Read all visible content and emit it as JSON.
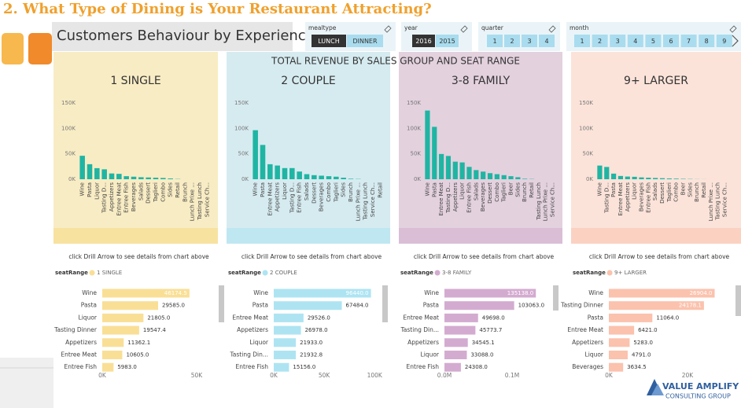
{
  "header": {
    "title": "2. What Type of Dining is Your Restaurant Attracting?",
    "subtitle": "Customers Behaviour by Experience",
    "section_title": "TOTAL REVENUE BY SALES GROUP AND SEAT RANGE",
    "logo_line1": "VALUE AMPLIFY",
    "logo_line2": "CONSULTING GROUP"
  },
  "slicers": [
    {
      "label": "mealtype",
      "options": [
        "LUNCH",
        "DINNER"
      ],
      "selected": 0
    },
    {
      "label": "year",
      "options": [
        2016,
        2015
      ],
      "selected": 0
    },
    {
      "label": "quarter",
      "options": [
        1,
        2,
        3,
        4
      ]
    },
    {
      "label": "month",
      "options": [
        1,
        2,
        3,
        4,
        5,
        6,
        7,
        8,
        9
      ]
    }
  ],
  "chart_data": [
    {
      "type": "bar",
      "title": "1 SINGLE",
      "color": "#1fb5a3",
      "categories": [
        "Wine",
        "Pasta",
        "Liquor",
        "Tasting D...",
        "Appetizers",
        "Entree Meat",
        "Entree Fish",
        "Beverages",
        "Salads",
        "Dessert",
        "Taglieri",
        "Combo",
        "Sides",
        "Retail",
        "Brunch",
        "Lunch Prixe ...",
        "Tasting Lunch",
        "Service Ch..."
      ],
      "values": [
        46174.5,
        29585,
        21805,
        19547.4,
        11362.1,
        10605,
        5983,
        5000,
        4000,
        3500,
        3000,
        2500,
        1500,
        500,
        0,
        0,
        0,
        0
      ],
      "ylim": [
        0,
        150000
      ],
      "yticks": [
        {
          "value": 0,
          "label": "0K"
        },
        {
          "value": 50000,
          "label": "50K"
        },
        {
          "value": 100000,
          "label": "100K"
        },
        {
          "value": 150000,
          "label": "150K"
        }
      ]
    },
    {
      "type": "bar",
      "title": "2 COUPLE",
      "color": "#1fb5a3",
      "categories": [
        "Wine",
        "Pasta",
        "Entree Meat",
        "Appetizers",
        "Liquor",
        "Tasting D...",
        "Entree Fish",
        "Salads",
        "Dessert",
        "Beverages",
        "Combo",
        "Taglieri",
        "Sides",
        "Brunch",
        "Lunch Prixe ...",
        "Tasting Lunch",
        "Service Ch...",
        "Retail"
      ],
      "values": [
        96440,
        67484,
        29526,
        26978,
        21933,
        21932.8,
        15156,
        10000,
        8000,
        7000,
        6000,
        5000,
        3000,
        1000,
        500,
        0,
        0,
        0
      ],
      "ylim": [
        0,
        150000
      ],
      "yticks": [
        {
          "value": 0,
          "label": "0K"
        },
        {
          "value": 50000,
          "label": "50K"
        },
        {
          "value": 100000,
          "label": "100K"
        },
        {
          "value": 150000,
          "label": "150K"
        }
      ]
    },
    {
      "type": "bar",
      "title": "3-8 FAMILY",
      "color": "#1fb5a3",
      "categories": [
        "Wine",
        "Pasta",
        "Entree Meat",
        "Tasting D...",
        "Appetizers",
        "Liquor",
        "Entree Fish",
        "Salads",
        "Beverages",
        "Dessert",
        "Combo",
        "Taglieri",
        "Beer",
        "Sides",
        "Brunch",
        "Retail",
        "Tasting Lunch",
        "Lunch Prixe ...",
        "Service Ch..."
      ],
      "values": [
        135138,
        103063,
        49698,
        45773.7,
        34545.1,
        33088,
        24308,
        18000,
        15000,
        12000,
        10000,
        8000,
        6000,
        4000,
        1000,
        500,
        0,
        0,
        0
      ],
      "ylim": [
        0,
        150000
      ],
      "yticks": [
        {
          "value": 0,
          "label": "0K"
        },
        {
          "value": 50000,
          "label": "50K"
        },
        {
          "value": 100000,
          "label": "100K"
        },
        {
          "value": 150000,
          "label": "150K"
        }
      ]
    },
    {
      "type": "bar",
      "title": "9+ LARGER",
      "color": "#1fb5a3",
      "categories": [
        "Wine",
        "Tasting D...",
        "Pasta",
        "Entree Meat",
        "Appetizers",
        "Liquor",
        "Beverages",
        "Entree Fish",
        "Salads",
        "Dessert",
        "Taglieri",
        "Combo",
        "Beer",
        "Sides",
        "Brunch",
        "Retail",
        "Lunch Prixe ...",
        "Tasting Lunch",
        "Service Ch..."
      ],
      "values": [
        26904,
        24178.1,
        11064,
        6421,
        5283,
        4791,
        3634.5,
        3000,
        2500,
        2000,
        1500,
        1200,
        800,
        500,
        200,
        100,
        0,
        0,
        0
      ],
      "ylim": [
        0,
        150000
      ],
      "yticks": [
        {
          "value": 0,
          "label": "0K"
        },
        {
          "value": 50000,
          "label": "50K"
        },
        {
          "value": 100000,
          "label": "100K"
        },
        {
          "value": 150000,
          "label": "150K"
        }
      ]
    },
    {
      "type": "hbar",
      "note": "click Drill Arrow to see details from chart above",
      "legend_title": "seatRange",
      "categories": [
        "Wine",
        "Pasta",
        "Liquor",
        "Tasting Dinner",
        "Appetizers",
        "Entree Meat",
        "Entree Fish"
      ],
      "series": [
        {
          "name": "1 SINGLE",
          "color": "#f9df96",
          "values": [
            46174.5,
            29585,
            21805,
            19547.4,
            11362.1,
            10605,
            5983
          ],
          "value_labels": [
            "46174.5",
            "29585.0",
            "21805.0",
            "19547.4",
            "11362.1",
            "10605.0",
            "5983.0"
          ]
        }
      ],
      "xlim": [
        0,
        60000
      ],
      "xticks": [
        {
          "value": 0,
          "label": "0K"
        },
        {
          "value": 50000,
          "label": "50K"
        }
      ]
    },
    {
      "type": "hbar",
      "note": "click Drill Arrow to see details from chart above",
      "legend_title": "seatRange",
      "categories": [
        "Wine",
        "Pasta",
        "Entree Meat",
        "Appetizers",
        "Liquor",
        "Tasting Din...",
        "Entree Fish"
      ],
      "series": [
        {
          "name": "2 COUPLE",
          "color": "#aee4f2",
          "values": [
            96440,
            67484,
            29526,
            26978,
            21933,
            21932.8,
            15156
          ],
          "value_labels": [
            "96440.0",
            "67484.0",
            "29526.0",
            "26978.0",
            "21933.0",
            "21932.8",
            "15156.0"
          ]
        }
      ],
      "xlim": [
        0,
        110000
      ],
      "xticks": [
        {
          "value": 0,
          "label": "0K"
        },
        {
          "value": 50000,
          "label": "50K"
        },
        {
          "value": 100000,
          "label": "100K"
        }
      ]
    },
    {
      "type": "hbar",
      "note": "click Drill Arrow to see details from chart above",
      "legend_title": "seatRange",
      "categories": [
        "Wine",
        "Pasta",
        "Entree Meat",
        "Tasting Din...",
        "Appetizers",
        "Liquor",
        "Entree Fish"
      ],
      "series": [
        {
          "name": "3-8 FAMILY",
          "color": "#d4abd0",
          "values": [
            135138,
            103063,
            49698,
            45773.7,
            34545.1,
            33088,
            24308
          ],
          "value_labels": [
            "135138.0",
            "103063.0",
            "49698.0",
            "45773.7",
            "34545.1",
            "33088.0",
            "24308.0"
          ]
        }
      ],
      "xlim": [
        0,
        150000
      ],
      "xticks": [
        {
          "value": 0,
          "label": "0.0M"
        },
        {
          "value": 100000,
          "label": "0.1M"
        }
      ]
    },
    {
      "type": "hbar",
      "note": "click Drill Arrow to see details from chart above",
      "legend_title": "seatRange",
      "categories": [
        "Wine",
        "Tasting Dinner",
        "Pasta",
        "Entree Meat",
        "Appetizers",
        "Liquor",
        "Beverages"
      ],
      "series": [
        {
          "name": "9+ LARGER",
          "color": "#fbc2ad",
          "values": [
            26904,
            24178.1,
            11064,
            6421,
            5283,
            4791,
            3634.5
          ],
          "value_labels": [
            "26904.0",
            "24178.1",
            "11064.0",
            "6421.0",
            "5283.0",
            "4791.0",
            "3634.5"
          ]
        }
      ],
      "xlim": [
        0,
        30000
      ],
      "xticks": [
        {
          "value": 0,
          "label": "0K"
        },
        {
          "value": 20000,
          "label": "20K"
        }
      ]
    }
  ]
}
